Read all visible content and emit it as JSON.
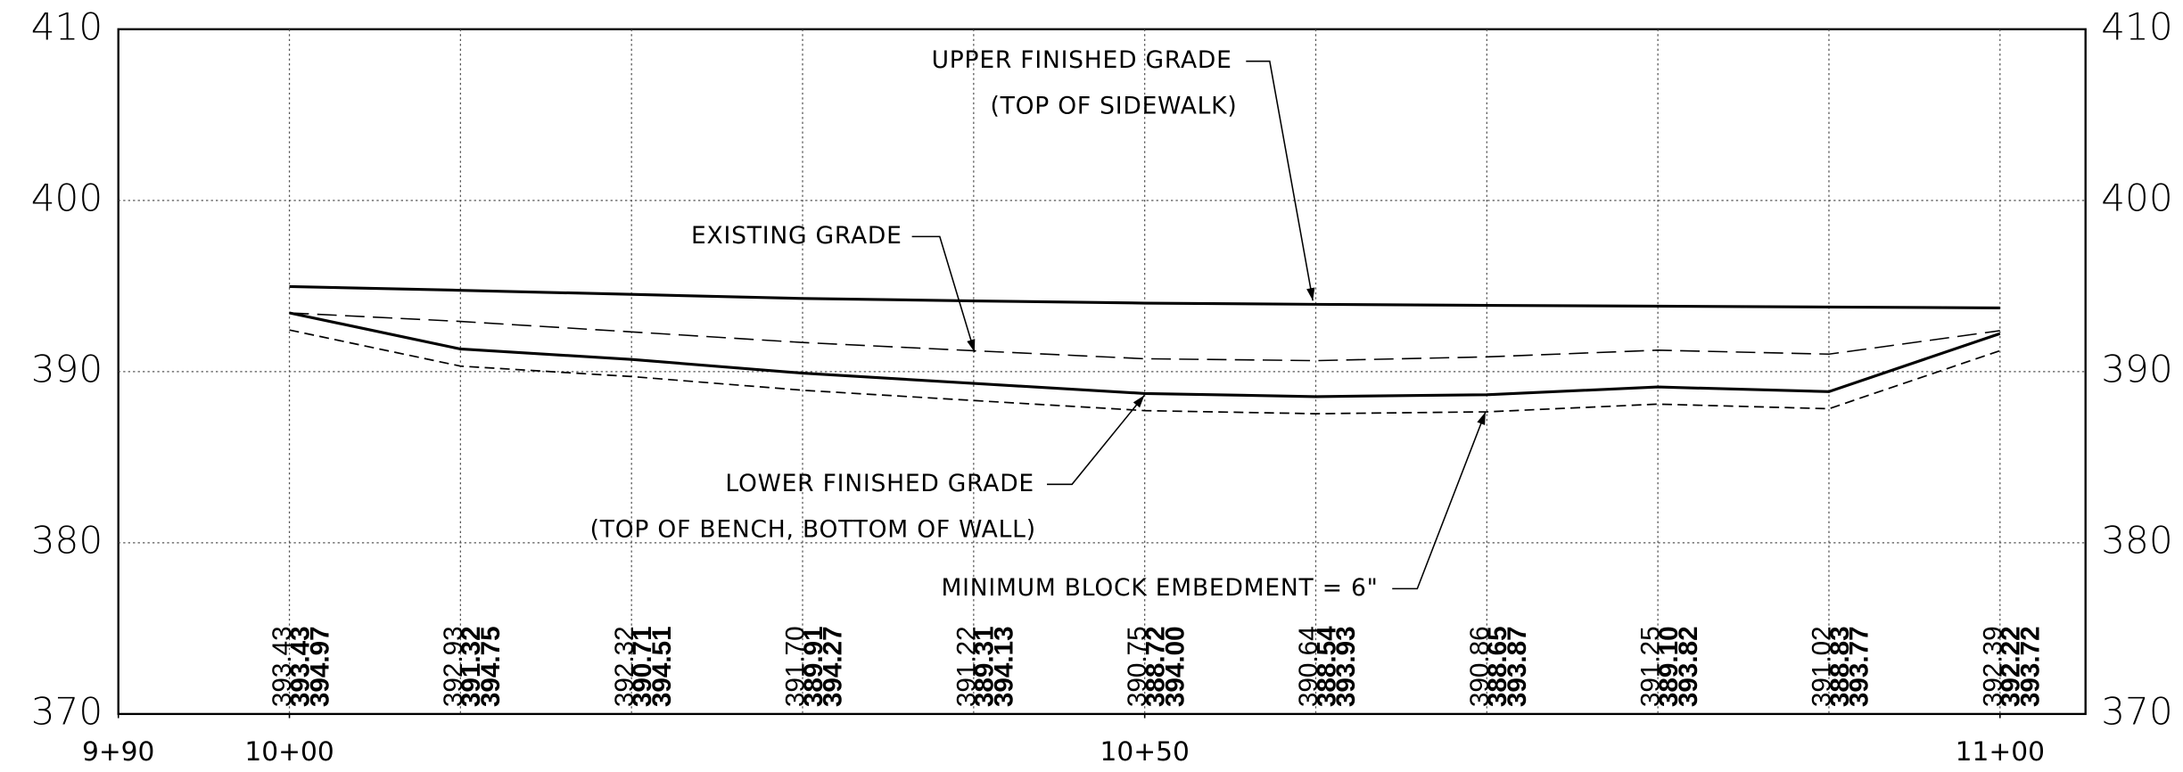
{
  "chart_data": {
    "type": "line",
    "x": [
      1000,
      1010,
      1020,
      1030,
      1040,
      1050,
      1060,
      1070,
      1080,
      1090,
      1100
    ],
    "xlim": [
      990,
      1105
    ],
    "xticks": [
      {
        "value": 990,
        "label": "9+90"
      },
      {
        "value": 1000,
        "label": "10+00"
      },
      {
        "value": 1050,
        "label": "10+50"
      },
      {
        "value": 1100,
        "label": "11+00"
      }
    ],
    "ylim": [
      370,
      410
    ],
    "yticks": [
      370,
      380,
      390,
      400,
      410
    ],
    "grid": true,
    "series": [
      {
        "name": "UPPER FINISHED GRADE",
        "note": "(TOP OF SIDEWALK)",
        "color": "#000000",
        "line_style": "solid",
        "values": [
          394.97,
          394.75,
          394.51,
          394.27,
          394.13,
          394.0,
          393.93,
          393.87,
          393.82,
          393.77,
          393.72
        ],
        "value_labels": [
          "394.97",
          "394.75",
          "394.51",
          "394.27",
          "394.13",
          "394.00",
          "393.93",
          "393.87",
          "393.82",
          "393.77",
          "393.72"
        ]
      },
      {
        "name": "EXISTING GRADE",
        "color": "#000000",
        "line_style": "dashed",
        "values": [
          393.43,
          392.93,
          392.32,
          391.7,
          391.22,
          390.75,
          390.64,
          390.86,
          391.25,
          391.02,
          392.39
        ],
        "value_labels": [
          "393.43",
          "392.93",
          "392.32",
          "391.70",
          "391.22",
          "390.75",
          "390.64",
          "390.86",
          "391.25",
          "391.02",
          "392.39"
        ]
      },
      {
        "name": "LOWER FINISHED GRADE",
        "note": "(TOP OF BENCH, BOTTOM OF WALL)",
        "color": "#000000",
        "line_style": "solid",
        "values": [
          393.43,
          391.32,
          390.71,
          389.91,
          389.31,
          388.72,
          388.54,
          388.65,
          389.1,
          388.83,
          392.22
        ],
        "value_labels": [
          "393.43",
          "391.32",
          "390.71",
          "389.91",
          "389.31",
          "388.72",
          "388.54",
          "388.65",
          "389.10",
          "388.83",
          "392.22"
        ]
      },
      {
        "name": "MINIMUM BLOCK EMBEDMENT = 6\"",
        "color": "#000000",
        "line_style": "short-dashed",
        "values": [
          392.43,
          390.32,
          389.71,
          388.91,
          388.31,
          387.72,
          387.54,
          387.65,
          388.1,
          387.83,
          391.22
        ]
      }
    ]
  }
}
